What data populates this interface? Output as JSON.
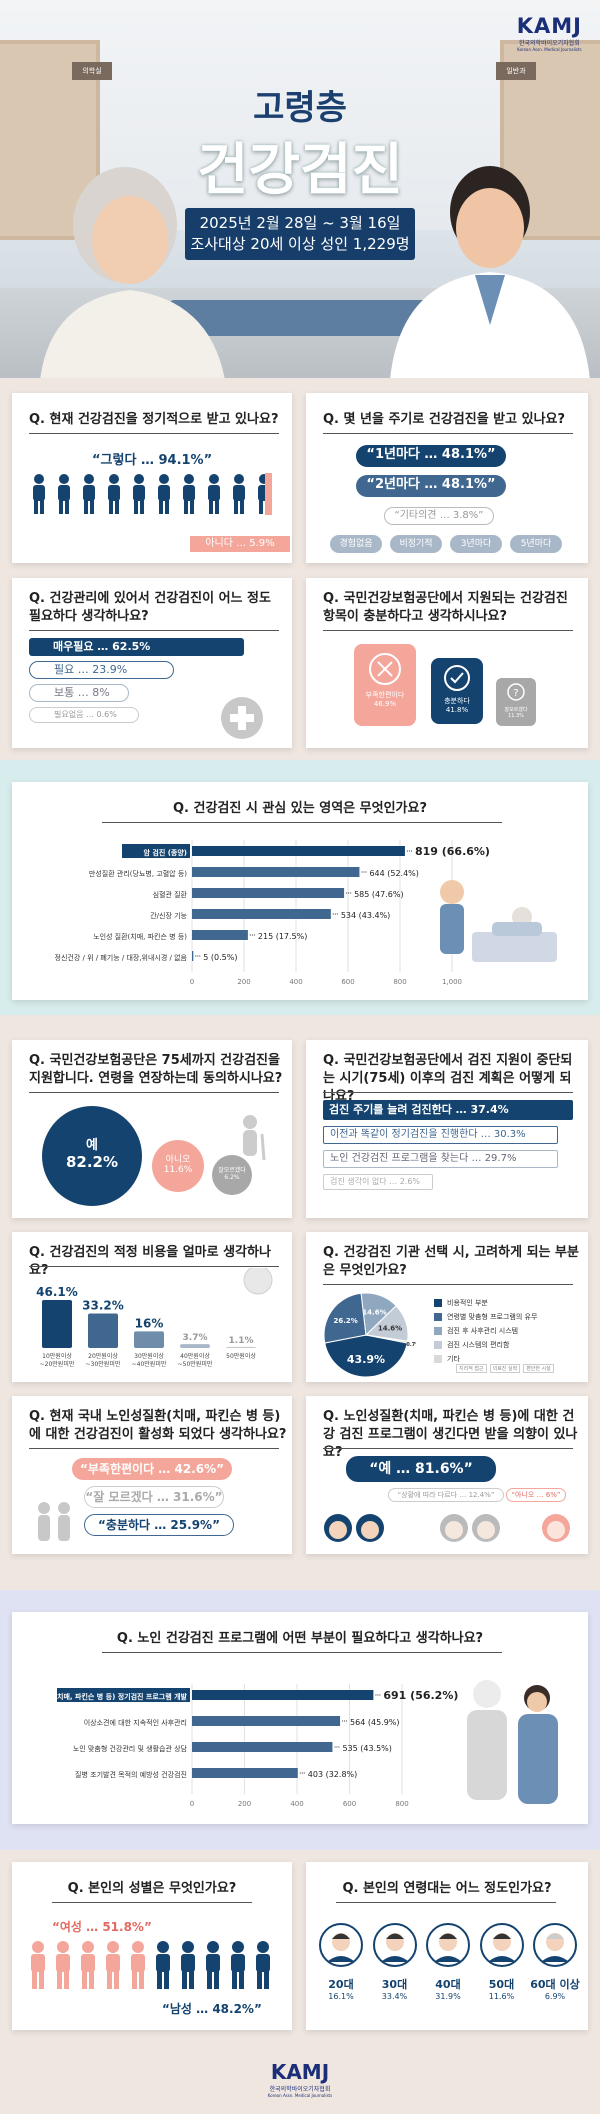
{
  "brand": {
    "name": "KAMJ",
    "sub": "한국의학바이오기자협회",
    "eng": "Korean Assn. Medical Journalists"
  },
  "hero": {
    "title1": "고령층",
    "title2": "건강검진",
    "date": "2025년 2월 28일 ~ 3월 16일",
    "target": "조사대상 20세 이상 성인 1,229명",
    "sign_l": "의학실",
    "sign_r": "일반과"
  },
  "colors": {
    "navy": "#14436f",
    "mid": "#40678f",
    "light": "#a9b8c8",
    "pink": "#f4a69b",
    "pink_text": "#e46a61",
    "grey": "#a8a8a8"
  },
  "q1": {
    "question": "Q. 현재 건강검진을 정기적으로 받고 있나요?",
    "yes_label": "“그렇다 … 94.1%”",
    "no_label": "아니다 … 5.9%"
  },
  "q2": {
    "question": "Q. 몇 년을 주기로 건강검진을 받고 있나요?",
    "opt1": "“1년마다 … 48.1%”",
    "opt2": "“2년마다 … 48.1%”",
    "other": "“기타의견 … 3.8%”",
    "tags": [
      "경험없음",
      "비정기적",
      "3년마다",
      "5년마다"
    ]
  },
  "q3": {
    "question": "Q. 건강관리에 있어서 건강검진이 어느 정도 필요하다 생각하나요?",
    "items": [
      "매우필요 … 62.5%",
      "필요 … 23.9%",
      "보통 … 8%",
      "필요없음 … 0.6%"
    ],
    "icon": "plus-icon"
  },
  "q4": {
    "question": "Q. 국민건강보험공단에서 지원되는 건강검진 항목이 충분하다고 생각하시나요?",
    "items": [
      {
        "label": "부족한편이다",
        "value": "46.9%"
      },
      {
        "label": "충분하다",
        "value": "41.8%"
      },
      {
        "label": "잘모르겠다",
        "value": "11.3%"
      }
    ]
  },
  "q5": {
    "question": "Q. 건강검진 시 관심 있는 영역은 무엇인가요?"
  },
  "q6": {
    "question": "Q. 국민건강보험공단은 75세까지 건강검진을 지원합니다. 연령을 연장하는데 동의하시나요?",
    "yes": "예",
    "yes_val": "82.2%",
    "no": "아니오",
    "no_val": "11.6%",
    "dk": "잘모르겠다",
    "dk_val": "6.2%"
  },
  "q7": {
    "question": "Q. 국민건강보험공단에서 검진 지원이 중단되는 시기(75세) 이후의 검진 계획은 어떻게 되나요?",
    "items": [
      "검진 주기를 늘려 검진한다 … 37.4%",
      "이전과 똑같이 정기검진을 진행한다 … 30.3%",
      "노인 건강검진 프로그램을 찾는다 … 29.7%",
      "검진 생각이 없다 … 2.6%"
    ]
  },
  "q8": {
    "question": "Q. 건강검진의 적정 비용을 얼마로 생각하나요?"
  },
  "q9": {
    "question": "Q. 건강검진 기관 선택 시, 고려하게 되는 부분은 무엇인가요?",
    "legend": [
      "비용적인 부분",
      "연령별 맞춤형 프로그램의 유무",
      "검진 후 사후관리 시스템",
      "검진 시스템의 편리함",
      "기타"
    ],
    "etc": [
      "지리적 접근",
      "의료진 실력",
      "편안한 시설"
    ]
  },
  "q10": {
    "question": "Q. 현재 국내 노인성질환(치매, 파킨슨 병 등)에 대한 건강검진이 활성화 되었다 생각하나요?",
    "items": [
      "“부족한편이다 … 42.6%”",
      "“잘 모르겠다 … 31.6%”",
      "“충분하다 … 25.9%”"
    ]
  },
  "q11": {
    "question": "Q. 노인성질환(치매, 파킨슨 병 등)에 대한 건강 검진 프로그램이 생긴다면 받을 의향이 있나요?",
    "yes": "“예 … 81.6%”",
    "dep": "“상황에 따라 다르다 … 12.4%”",
    "no": "“아니오 … 6%”"
  },
  "q12": {
    "question": "Q. 노인 건강검진 프로그램에 어떤 부분이 필요하다고 생각하나요?"
  },
  "q13": {
    "question": "Q. 본인의 성별은 무엇인가요?",
    "female": "“여성 … 51.8%”",
    "male": "“남성 … 48.2%”"
  },
  "q14": {
    "question": "Q. 본인의 연령대는 어느 정도인가요?",
    "ages": [
      {
        "label": "20대",
        "v": "16.1%"
      },
      {
        "label": "30대",
        "v": "33.4%"
      },
      {
        "label": "40대",
        "v": "31.9%"
      },
      {
        "label": "50대",
        "v": "11.6%"
      },
      {
        "label": "60대 이상",
        "v": "6.9%"
      }
    ]
  },
  "chart_data": [
    {
      "type": "bar",
      "title": "Q. 건강검진 시 관심 있는 영역은 무엇인가요?",
      "categories": [
        "암 검진 (종양)",
        "만성질환 관리(당뇨병, 고혈압 등)",
        "심혈관 질환",
        "간/신장 기능",
        "노인성 질환(치매, 파킨슨 병 등)",
        "정신건강 / 위 / 폐기능 / 대장,위내시경 / 없음"
      ],
      "values": [
        819,
        644,
        585,
        534,
        215,
        5
      ],
      "labels": [
        "819 (66.6%)",
        "644 (52.4%)",
        "585 (47.6%)",
        "534 (43.4%)",
        "215 (17.5%)",
        "5 (0.5%)"
      ],
      "ticks": [
        "0",
        "200",
        "400",
        "600",
        "800",
        "1,000"
      ],
      "xlim": [
        0,
        1000
      ]
    },
    {
      "type": "bar",
      "title": "Q. 건강검진의 적정 비용을 얼마로 생각하나요?",
      "categories": [
        "10만원이상 ~20만원미만",
        "20만원이상 ~30만원미만",
        "30만원이상 ~40만원미만",
        "40만원이상 ~50만원미만",
        "50만원이상"
      ],
      "values": [
        46.1,
        33.2,
        16,
        3.7,
        1.1
      ],
      "labels": [
        "46.1%",
        "33.2%",
        "16%",
        "3.7%",
        "1.1%"
      ]
    },
    {
      "type": "pie",
      "title": "Q. 건강검진 기관 선택 시, 고려하게 되는 부분은 무엇인가요?",
      "categories": [
        "비용적인 부분",
        "연령별 맞춤형 프로그램의 유무",
        "검진 후 사후관리 시스템",
        "검진 시스템의 편리함",
        "기타"
      ],
      "values": [
        43.9,
        26.2,
        14.6,
        14.6,
        0.7
      ],
      "labels": [
        "43.9%",
        "26.2%",
        "14.6%",
        "14.6%",
        "0.7%"
      ]
    },
    {
      "type": "bar",
      "title": "Q. 노인 건강검진 프로그램에 어떤 부분이 필요하다고 생각하나요?",
      "categories": [
        "노인성질환(치매, 파킨슨 병 등) 정기검진 프로그램 개발",
        "이상소견에 대한 지속적인 사후관리",
        "노인 맞춤형 건강관리 및 생활습관 상담",
        "질병 조기발견 목적의 예방성 건강검진"
      ],
      "values": [
        691,
        564,
        535,
        403
      ],
      "labels": [
        "691 (56.2%)",
        "564 (45.9%)",
        "535 (43.5%)",
        "403 (32.8%)"
      ],
      "ticks": [
        "0",
        "200",
        "400",
        "600",
        "800"
      ],
      "xlim": [
        0,
        800
      ]
    }
  ]
}
